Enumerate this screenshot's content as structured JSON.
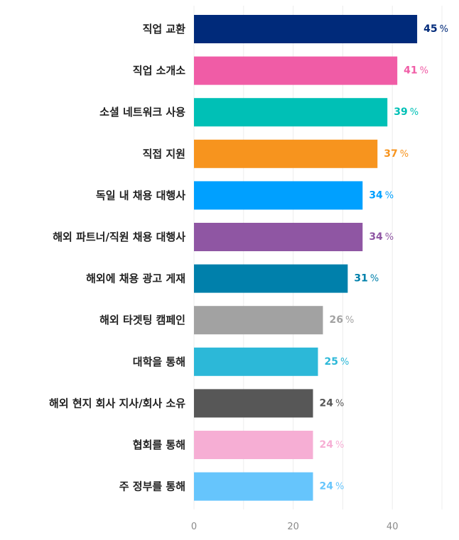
{
  "chart_data": {
    "type": "bar",
    "orientation": "horizontal",
    "categories": [
      "직업 교환",
      "직업 소개소",
      "소셜 네트워크 사용",
      "직접 지원",
      "독일 내 채용 대행사",
      "해외 파트너/직원 채용 대행사",
      "해외에 채용 광고 게재",
      "해외 타겟팅 캠페인",
      "대학을 통해",
      "해외 현지 회사 지사/회사 소유",
      "협회를 통해",
      "주 정부를 통해"
    ],
    "values": [
      45,
      41,
      39,
      37,
      34,
      34,
      31,
      26,
      25,
      24,
      24,
      24
    ],
    "colors": [
      "#002a7a",
      "#f05ca6",
      "#00c0b6",
      "#f7941e",
      "#00a0ff",
      "#8f56a3",
      "#0080ab",
      "#a2a2a2",
      "#2cb8d8",
      "#575757",
      "#f6aed4",
      "#66c5fc"
    ],
    "value_suffix": "%",
    "xticks": [
      "0",
      "20",
      "40"
    ],
    "xlim": [
      0,
      50
    ],
    "grid": true
  }
}
